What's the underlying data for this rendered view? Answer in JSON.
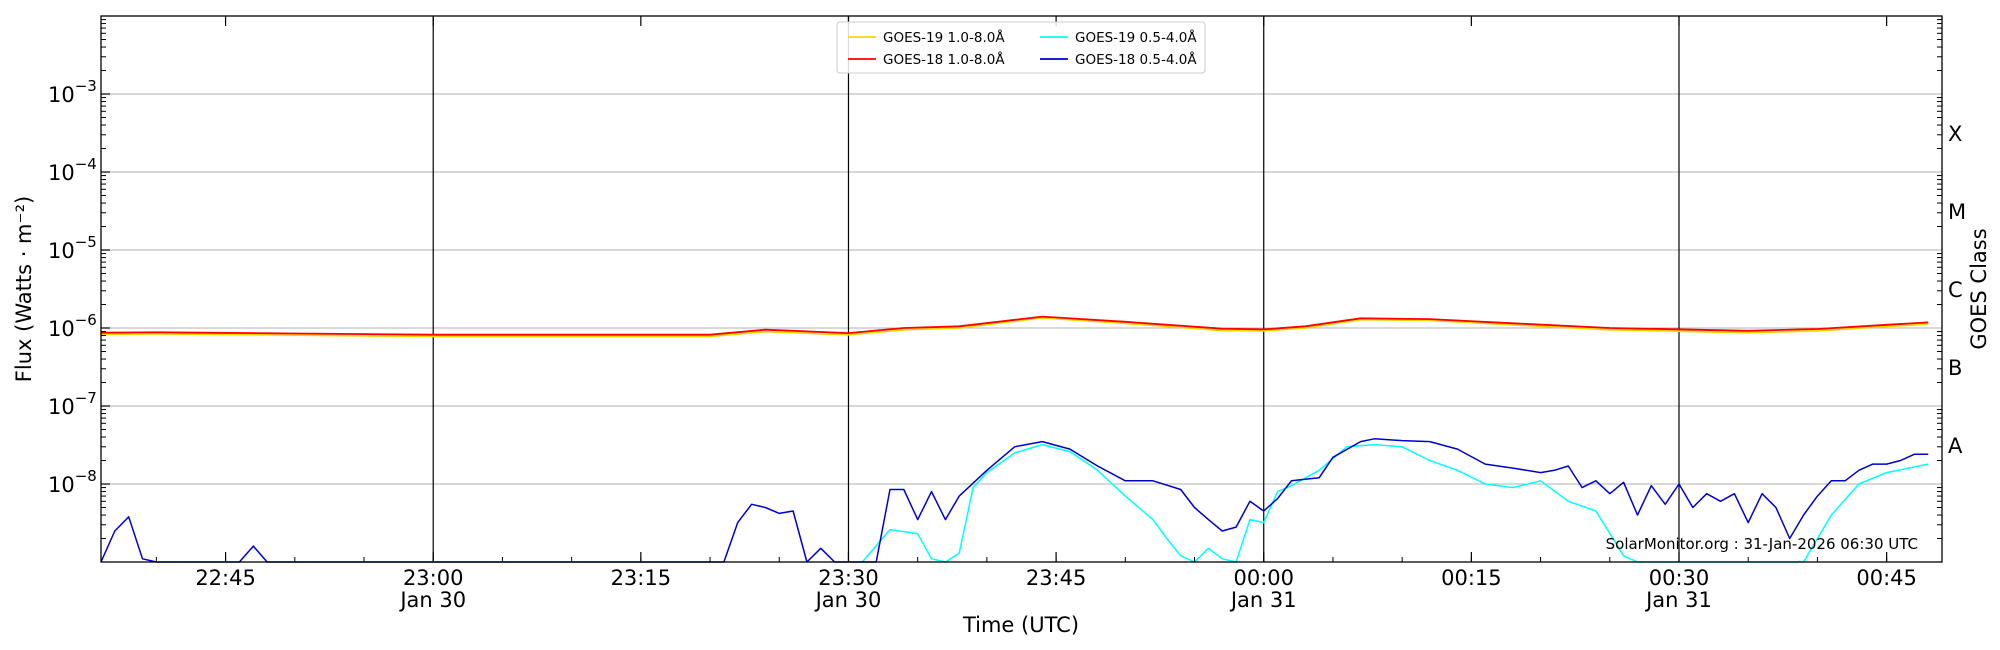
{
  "chart_data": {
    "type": "line",
    "xlabel": "Time (UTC)",
    "ylabel": "Flux (Watts · m⁻²)",
    "y2label": "GOES Class",
    "yscale": "log",
    "xlim": [
      "2026-01-30 22:36",
      "2026-01-31 00:49"
    ],
    "ylim": [
      1e-09,
      0.01
    ],
    "grid": "horizontal",
    "legend_position": "top-center",
    "credit": "SolarMonitor.org : 31-Jan-2026 06:30 UTC",
    "x_ticks": [
      {
        "time": "2026-01-30 22:45",
        "label": "22:45",
        "sublabel": ""
      },
      {
        "time": "2026-01-30 23:00",
        "label": "23:00",
        "sublabel": "Jan 30"
      },
      {
        "time": "2026-01-30 23:15",
        "label": "23:15",
        "sublabel": ""
      },
      {
        "time": "2026-01-30 23:30",
        "label": "23:30",
        "sublabel": "Jan 30"
      },
      {
        "time": "2026-01-30 23:45",
        "label": "23:45",
        "sublabel": ""
      },
      {
        "time": "2026-01-31 00:00",
        "label": "00:00",
        "sublabel": "Jan 31"
      },
      {
        "time": "2026-01-31 00:15",
        "label": "00:15",
        "sublabel": ""
      },
      {
        "time": "2026-01-31 00:30",
        "label": "00:30",
        "sublabel": "Jan 31"
      },
      {
        "time": "2026-01-31 00:45",
        "label": "00:45",
        "sublabel": ""
      }
    ],
    "vertical_lines": [
      "2026-01-30 23:00",
      "2026-01-30 23:30",
      "2026-01-31 00:00",
      "2026-01-31 00:30"
    ],
    "y_ticks": [
      {
        "value": 1e-08,
        "mantissa": "10",
        "exponent": "−8"
      },
      {
        "value": 1e-07,
        "mantissa": "10",
        "exponent": "−7"
      },
      {
        "value": 1e-06,
        "mantissa": "10",
        "exponent": "−6"
      },
      {
        "value": 1e-05,
        "mantissa": "10",
        "exponent": "−5"
      },
      {
        "value": 0.0001,
        "mantissa": "10",
        "exponent": "−4"
      },
      {
        "value": 0.001,
        "mantissa": "10",
        "exponent": "−3"
      }
    ],
    "goes_classes": [
      {
        "label": "A",
        "flux": 3.16e-08
      },
      {
        "label": "B",
        "flux": 3.16e-07
      },
      {
        "label": "C",
        "flux": 3.16e-06
      },
      {
        "label": "M",
        "flux": 3.16e-05
      },
      {
        "label": "X",
        "flux": 0.000316
      }
    ],
    "series": [
      {
        "name": "GOES-19 1.0-8.0Å",
        "color": "#ffd700",
        "times": [
          "2026-01-30 22:36",
          "2026-01-30 22:40",
          "2026-01-30 22:50",
          "2026-01-30 23:00",
          "2026-01-30 23:10",
          "2026-01-30 23:20",
          "2026-01-30 23:24",
          "2026-01-30 23:30",
          "2026-01-30 23:34",
          "2026-01-30 23:38",
          "2026-01-30 23:44",
          "2026-01-30 23:50",
          "2026-01-30 23:57",
          "2026-01-31 00:00",
          "2026-01-31 00:03",
          "2026-01-31 00:07",
          "2026-01-31 00:12",
          "2026-01-31 00:18",
          "2026-01-31 00:25",
          "2026-01-31 00:35",
          "2026-01-31 00:40",
          "2026-01-31 00:45",
          "2026-01-31 00:48"
        ],
        "values": [
          8.3e-07,
          8.4e-07,
          8.1e-07,
          7.8e-07,
          7.8e-07,
          7.8e-07,
          9e-07,
          8.2e-07,
          9.5e-07,
          1e-06,
          1.35e-06,
          1.15e-06,
          9.3e-07,
          9.2e-07,
          1e-06,
          1.28e-06,
          1.25e-06,
          1.1e-06,
          9.5e-07,
          8.7e-07,
          9.2e-07,
          1.05e-06,
          1.12e-06
        ]
      },
      {
        "name": "GOES-18 1.0-8.0Å",
        "color": "#ff0000",
        "times": [
          "2026-01-30 22:36",
          "2026-01-30 22:40",
          "2026-01-30 22:50",
          "2026-01-30 23:00",
          "2026-01-30 23:10",
          "2026-01-30 23:20",
          "2026-01-30 23:24",
          "2026-01-30 23:30",
          "2026-01-30 23:34",
          "2026-01-30 23:38",
          "2026-01-30 23:44",
          "2026-01-30 23:50",
          "2026-01-30 23:57",
          "2026-01-31 00:00",
          "2026-01-31 00:03",
          "2026-01-31 00:07",
          "2026-01-31 00:12",
          "2026-01-31 00:18",
          "2026-01-31 00:25",
          "2026-01-31 00:35",
          "2026-01-31 00:40",
          "2026-01-31 00:45",
          "2026-01-31 00:48"
        ],
        "values": [
          8.7e-07,
          8.8e-07,
          8.5e-07,
          8.2e-07,
          8.2e-07,
          8.2e-07,
          9.5e-07,
          8.6e-07,
          1e-06,
          1.05e-06,
          1.4e-06,
          1.2e-06,
          9.8e-07,
          9.6e-07,
          1.05e-06,
          1.33e-06,
          1.3e-06,
          1.15e-06,
          1e-06,
          9.2e-07,
          9.7e-07,
          1.1e-06,
          1.18e-06
        ]
      },
      {
        "name": "GOES-19 0.5-4.0Å",
        "color": "#00ffff",
        "times": [
          "2026-01-30 23:31",
          "2026-01-30 23:33",
          "2026-01-30 23:35",
          "2026-01-30 23:36",
          "2026-01-30 23:37",
          "2026-01-30 23:38",
          "2026-01-30 23:39",
          "2026-01-30 23:40",
          "2026-01-30 23:42",
          "2026-01-30 23:44",
          "2026-01-30 23:46",
          "2026-01-30 23:48",
          "2026-01-30 23:50",
          "2026-01-30 23:52",
          "2026-01-30 23:53",
          "2026-01-30 23:54",
          "2026-01-30 23:55",
          "2026-01-30 23:56",
          "2026-01-30 23:57",
          "2026-01-30 23:58",
          "2026-01-30 23:59",
          "2026-01-31 00:00",
          "2026-01-31 00:01",
          "2026-01-31 00:02",
          "2026-01-31 00:04",
          "2026-01-31 00:06",
          "2026-01-31 00:08",
          "2026-01-31 00:10",
          "2026-01-31 00:12",
          "2026-01-31 00:14",
          "2026-01-31 00:16",
          "2026-01-31 00:18",
          "2026-01-31 00:20",
          "2026-01-31 00:22",
          "2026-01-31 00:24",
          "2026-01-31 00:26",
          "2026-01-31 00:27",
          "2026-01-31 00:29",
          "2026-01-31 00:39",
          "2026-01-31 00:41",
          "2026-01-31 00:43",
          "2026-01-31 00:45",
          "2026-01-31 00:48"
        ],
        "values": [
          1e-09,
          2.6e-09,
          2.3e-09,
          1.1e-09,
          1e-09,
          1.3e-09,
          9e-09,
          1.4e-08,
          2.5e-08,
          3.2e-08,
          2.6e-08,
          1.5e-08,
          7e-09,
          3.5e-09,
          2e-09,
          1.2e-09,
          1e-09,
          1.5e-09,
          1.1e-09,
          1e-09,
          3.5e-09,
          3.2e-09,
          8e-09,
          9.5e-09,
          1.5e-08,
          3e-08,
          3.2e-08,
          3e-08,
          2e-08,
          1.5e-08,
          1e-08,
          9e-09,
          1.1e-08,
          6e-09,
          4.5e-09,
          1.2e-09,
          1e-09,
          1e-09,
          1e-09,
          4e-09,
          1e-08,
          1.4e-08,
          1.8e-08
        ]
      },
      {
        "name": "GOES-18 0.5-4.0Å",
        "color": "#0000cd",
        "times": [
          "2026-01-30 22:36",
          "2026-01-30 22:37",
          "2026-01-30 22:38",
          "2026-01-30 22:39",
          "2026-01-30 22:40",
          "2026-01-30 22:46",
          "2026-01-30 22:47",
          "2026-01-30 22:48",
          "2026-01-30 23:21",
          "2026-01-30 23:22",
          "2026-01-30 23:23",
          "2026-01-30 23:24",
          "2026-01-30 23:25",
          "2026-01-30 23:26",
          "2026-01-30 23:27",
          "2026-01-30 23:28",
          "2026-01-30 23:29",
          "2026-01-30 23:30",
          "2026-01-30 23:32",
          "2026-01-30 23:33",
          "2026-01-30 23:34",
          "2026-01-30 23:35",
          "2026-01-30 23:36",
          "2026-01-30 23:37",
          "2026-01-30 23:38",
          "2026-01-30 23:40",
          "2026-01-30 23:42",
          "2026-01-30 23:44",
          "2026-01-30 23:46",
          "2026-01-30 23:48",
          "2026-01-30 23:50",
          "2026-01-30 23:52",
          "2026-01-30 23:54",
          "2026-01-30 23:55",
          "2026-01-30 23:56",
          "2026-01-30 23:57",
          "2026-01-30 23:58",
          "2026-01-30 23:59",
          "2026-01-31 00:00",
          "2026-01-31 00:01",
          "2026-01-31 00:02",
          "2026-01-31 00:04",
          "2026-01-31 00:05",
          "2026-01-31 00:07",
          "2026-01-31 00:08",
          "2026-01-31 00:10",
          "2026-01-31 00:12",
          "2026-01-31 00:14",
          "2026-01-31 00:16",
          "2026-01-31 00:18",
          "2026-01-31 00:20",
          "2026-01-31 00:21",
          "2026-01-31 00:22",
          "2026-01-31 00:23",
          "2026-01-31 00:24",
          "2026-01-31 00:25",
          "2026-01-31 00:26",
          "2026-01-31 00:27",
          "2026-01-31 00:28",
          "2026-01-31 00:29",
          "2026-01-31 00:30",
          "2026-01-31 00:31",
          "2026-01-31 00:32",
          "2026-01-31 00:33",
          "2026-01-31 00:34",
          "2026-01-31 00:35",
          "2026-01-31 00:36",
          "2026-01-31 00:37",
          "2026-01-31 00:38",
          "2026-01-31 00:39",
          "2026-01-31 00:40",
          "2026-01-31 00:41",
          "2026-01-31 00:42",
          "2026-01-31 00:43",
          "2026-01-31 00:44",
          "2026-01-31 00:45",
          "2026-01-31 00:46",
          "2026-01-31 00:47",
          "2026-01-31 00:48"
        ],
        "values": [
          1e-09,
          2.5e-09,
          3.8e-09,
          1.1e-09,
          1e-09,
          1e-09,
          1.6e-09,
          1e-09,
          1e-09,
          3.2e-09,
          5.5e-09,
          5e-09,
          4.2e-09,
          4.5e-09,
          1e-09,
          1.5e-09,
          1e-09,
          1e-09,
          1e-09,
          8.5e-09,
          8.5e-09,
          3.5e-09,
          8e-09,
          3.5e-09,
          7e-09,
          1.5e-08,
          3e-08,
          3.5e-08,
          2.8e-08,
          1.7e-08,
          1.1e-08,
          1.1e-08,
          8.5e-09,
          5e-09,
          3.5e-09,
          2.5e-09,
          2.8e-09,
          6e-09,
          4.5e-09,
          6.5e-09,
          1.1e-08,
          1.2e-08,
          2.2e-08,
          3.5e-08,
          3.8e-08,
          3.6e-08,
          3.5e-08,
          2.8e-08,
          1.8e-08,
          1.6e-08,
          1.4e-08,
          1.5e-08,
          1.7e-08,
          9e-09,
          1.1e-08,
          7.5e-09,
          1.05e-08,
          4e-09,
          9.5e-09,
          5.5e-09,
          1e-08,
          5e-09,
          7.5e-09,
          6e-09,
          7.5e-09,
          3.2e-09,
          7.5e-09,
          5e-09,
          2e-09,
          4e-09,
          7e-09,
          1.1e-08,
          1.1e-08,
          1.5e-08,
          1.8e-08,
          1.8e-08,
          2e-08,
          2.4e-08,
          2.4e-08
        ]
      }
    ]
  }
}
